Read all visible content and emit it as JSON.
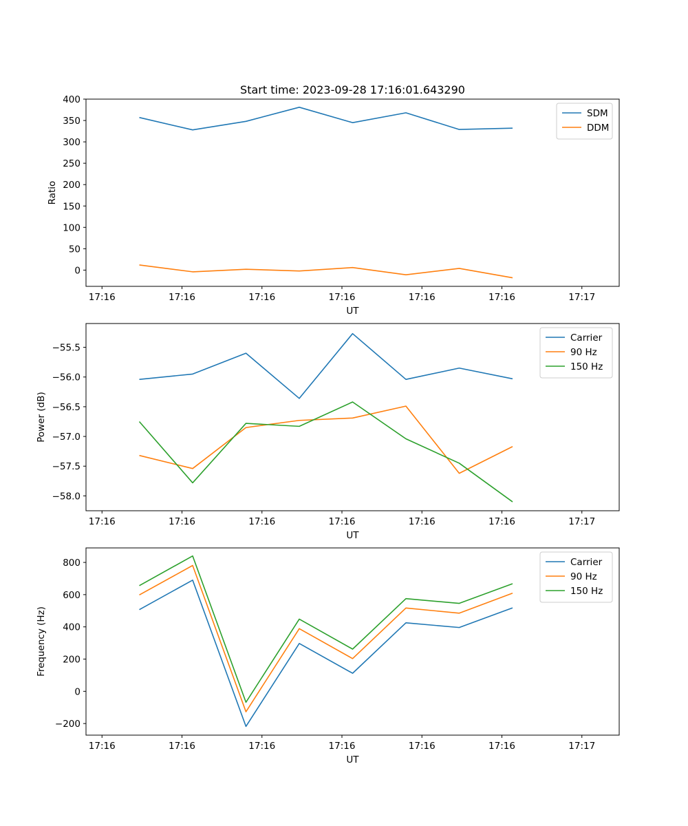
{
  "chart_data": [
    {
      "type": "line",
      "title": "Start time: 2023-09-28 17:16:01.643290",
      "xlabel": "UT",
      "ylabel": "Ratio",
      "xlim": [
        0,
        10
      ],
      "ylim": [
        -38,
        400
      ],
      "x_ticks": [
        0.3,
        1.8,
        3.3,
        4.8,
        6.3,
        7.8,
        9.3
      ],
      "x_tick_labels": [
        "17:16",
        "17:16",
        "17:16",
        "17:16",
        "17:16",
        "17:16",
        "17:17"
      ],
      "y_ticks": [
        0,
        50,
        100,
        150,
        200,
        250,
        300,
        350,
        400
      ],
      "y_tick_labels": [
        "0",
        "50",
        "100",
        "150",
        "200",
        "250",
        "300",
        "350",
        "400"
      ],
      "x": [
        1,
        2,
        3,
        4,
        5,
        6,
        7,
        8
      ],
      "legend_loc": "top-right",
      "series": [
        {
          "name": "SDM",
          "color": "#1f77b4",
          "values": [
            357,
            328,
            348,
            381,
            345,
            368,
            329,
            332
          ]
        },
        {
          "name": "DDM",
          "color": "#ff7f0e",
          "values": [
            12,
            -4,
            2,
            -2,
            6,
            -11,
            4,
            -18
          ]
        }
      ]
    },
    {
      "type": "line",
      "title": "",
      "xlabel": "UT",
      "ylabel": "Power (dB)",
      "xlim": [
        0,
        10
      ],
      "ylim": [
        -58.25,
        -55.1
      ],
      "x_ticks": [
        0.3,
        1.8,
        3.3,
        4.8,
        6.3,
        7.8,
        9.3
      ],
      "x_tick_labels": [
        "17:16",
        "17:16",
        "17:16",
        "17:16",
        "17:16",
        "17:16",
        "17:17"
      ],
      "y_ticks": [
        -58.0,
        -57.5,
        -57.0,
        -56.5,
        -56.0,
        -55.5
      ],
      "y_tick_labels": [
        "−58.0",
        "−57.5",
        "−57.0",
        "−56.5",
        "−56.0",
        "−55.5"
      ],
      "x": [
        1,
        2,
        3,
        4,
        5,
        6,
        7,
        8
      ],
      "legend_loc": "top-right",
      "series": [
        {
          "name": "Carrier",
          "color": "#1f77b4",
          "values": [
            -56.04,
            -55.95,
            -55.6,
            -56.36,
            -55.27,
            -56.04,
            -55.85,
            -56.03
          ]
        },
        {
          "name": "90 Hz",
          "color": "#ff7f0e",
          "values": [
            -57.32,
            -57.54,
            -56.85,
            -56.73,
            -56.69,
            -56.49,
            -57.62,
            -57.17
          ]
        },
        {
          "name": "150 Hz",
          "color": "#2ca02c",
          "values": [
            -56.75,
            -57.78,
            -56.78,
            -56.83,
            -56.42,
            -57.04,
            -57.45,
            -58.1
          ]
        }
      ]
    },
    {
      "type": "line",
      "title": "",
      "xlabel": "UT",
      "ylabel": "Frequency (Hz)",
      "xlim": [
        0,
        10
      ],
      "ylim": [
        -272,
        890
      ],
      "x_ticks": [
        0.3,
        1.8,
        3.3,
        4.8,
        6.3,
        7.8,
        9.3
      ],
      "x_tick_labels": [
        "17:16",
        "17:16",
        "17:16",
        "17:16",
        "17:16",
        "17:16",
        "17:17"
      ],
      "y_ticks": [
        -200,
        0,
        200,
        400,
        600,
        800
      ],
      "y_tick_labels": [
        "−200",
        "0",
        "200",
        "400",
        "600",
        "800"
      ],
      "x": [
        1,
        2,
        3,
        4,
        5,
        6,
        7,
        8
      ],
      "legend_loc": "top-right",
      "series": [
        {
          "name": "Carrier",
          "color": "#1f77b4",
          "values": [
            507,
            690,
            -218,
            297,
            112,
            425,
            396,
            518
          ]
        },
        {
          "name": "90 Hz",
          "color": "#ff7f0e",
          "values": [
            598,
            781,
            -127,
            389,
            203,
            517,
            485,
            609
          ]
        },
        {
          "name": "150 Hz",
          "color": "#2ca02c",
          "values": [
            656,
            840,
            -68,
            448,
            262,
            575,
            546,
            668
          ]
        }
      ]
    }
  ]
}
